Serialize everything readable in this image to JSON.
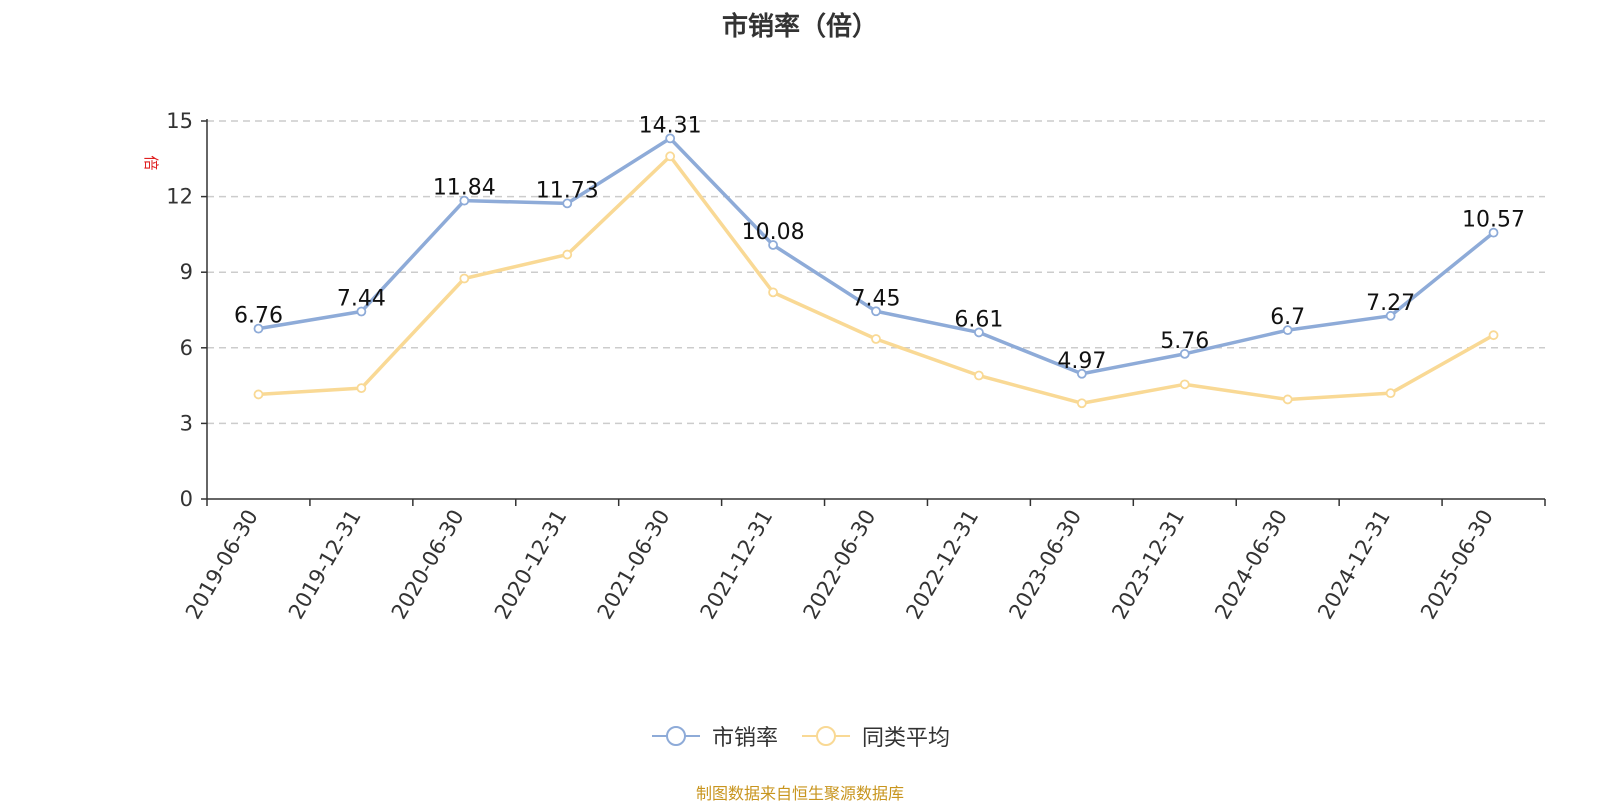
{
  "chart_data": {
    "type": "line",
    "title": "市销率（倍）",
    "ylabel": "倍",
    "xlabel": "",
    "ylim": [
      0,
      15
    ],
    "yticks": [
      0,
      3,
      6,
      9,
      12,
      15
    ],
    "grid": true,
    "legend_position": "bottom",
    "categories": [
      "2019-06-30",
      "2019-12-31",
      "2020-06-30",
      "2020-12-31",
      "2021-06-30",
      "2021-12-31",
      "2022-06-30",
      "2022-12-31",
      "2023-06-30",
      "2023-12-31",
      "2024-06-30",
      "2024-12-31",
      "2025-06-30"
    ],
    "series": [
      {
        "name": "市销率",
        "color": "#8eabd8",
        "show_labels": true,
        "values": [
          6.76,
          7.44,
          11.84,
          11.73,
          14.31,
          10.08,
          7.45,
          6.61,
          4.97,
          5.76,
          6.7,
          7.27,
          10.57
        ]
      },
      {
        "name": "同类平均",
        "color": "#f9d995",
        "show_labels": false,
        "values": [
          4.15,
          4.4,
          8.75,
          9.7,
          13.6,
          8.2,
          6.35,
          4.9,
          3.8,
          4.55,
          3.95,
          4.2,
          6.5
        ]
      }
    ],
    "source_text": "制图数据来自恒生聚源数据库"
  }
}
